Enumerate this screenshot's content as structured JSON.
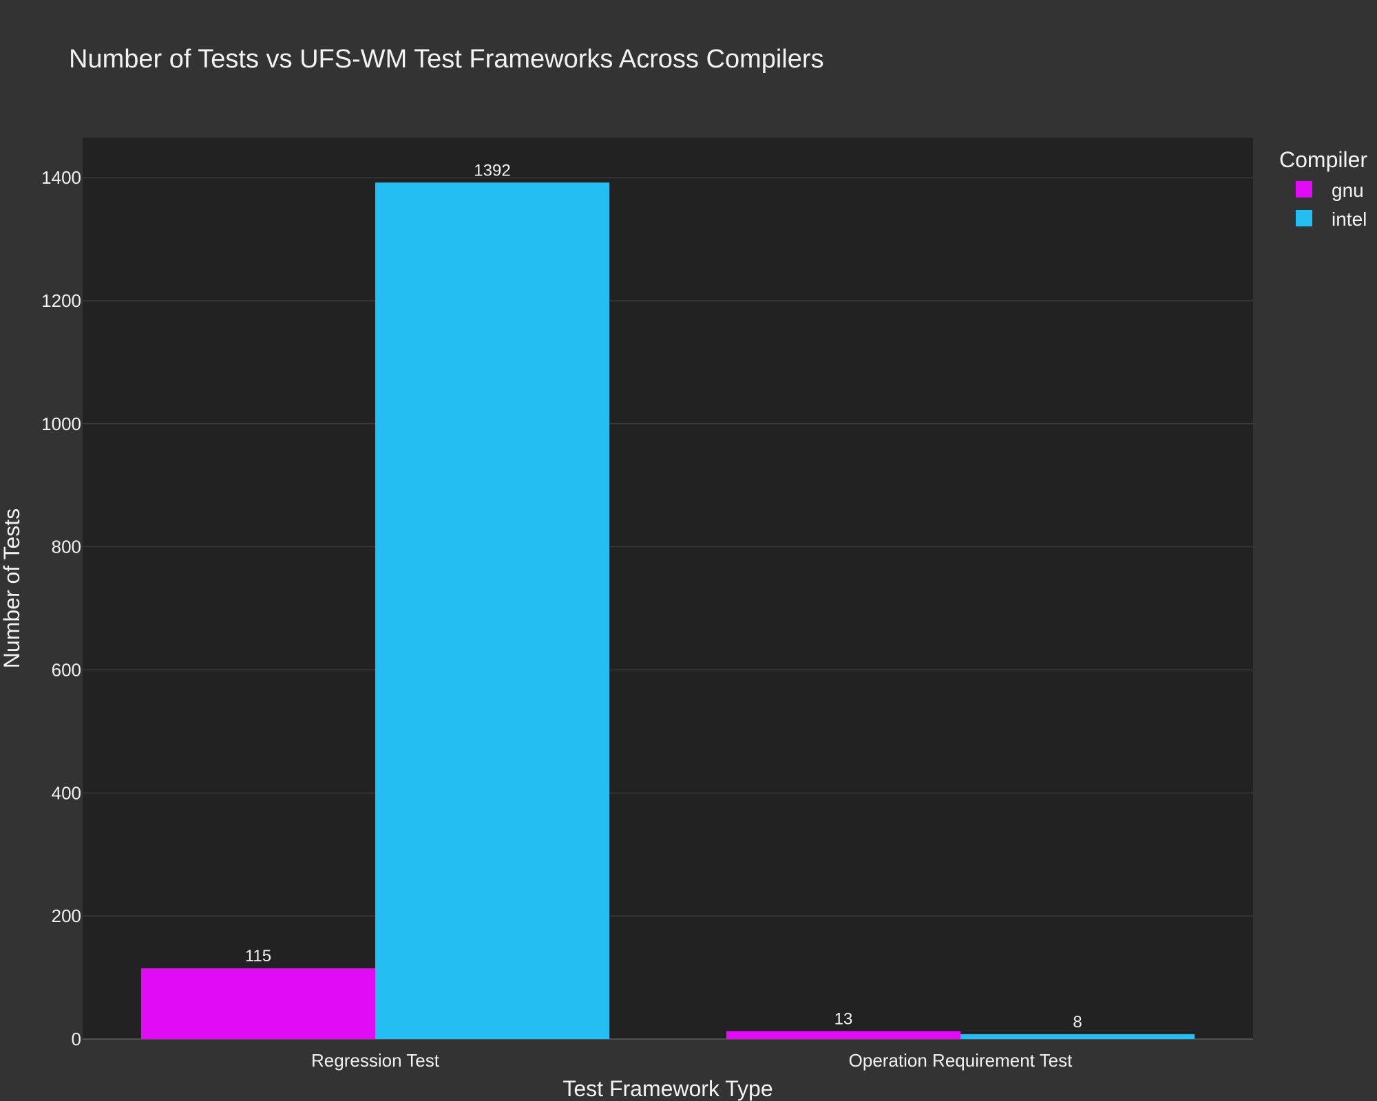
{
  "chart_data": {
    "type": "bar",
    "title": "Number of Tests vs UFS-WM Test Frameworks Across Compilers",
    "xlabel": "Test Framework Type",
    "ylabel": "Number of Tests",
    "categories": [
      "Regression Test",
      "Operation Requirement Test"
    ],
    "series": [
      {
        "name": "gnu",
        "color": "#e20bf5",
        "values": [
          115,
          13
        ]
      },
      {
        "name": "intel",
        "color": "#24bef2",
        "values": [
          1392,
          8
        ]
      }
    ],
    "ylim": [
      0,
      1465
    ],
    "yticks": [
      0,
      200,
      400,
      600,
      800,
      1000,
      1200,
      1400
    ],
    "grid": true,
    "legend": {
      "title": "Compiler",
      "placement": "top-right"
    },
    "colors": {
      "paper_bg": "#333333",
      "plot_bg": "#222222",
      "grid": "#3a3a3a",
      "text": "#f2f2f2"
    }
  }
}
